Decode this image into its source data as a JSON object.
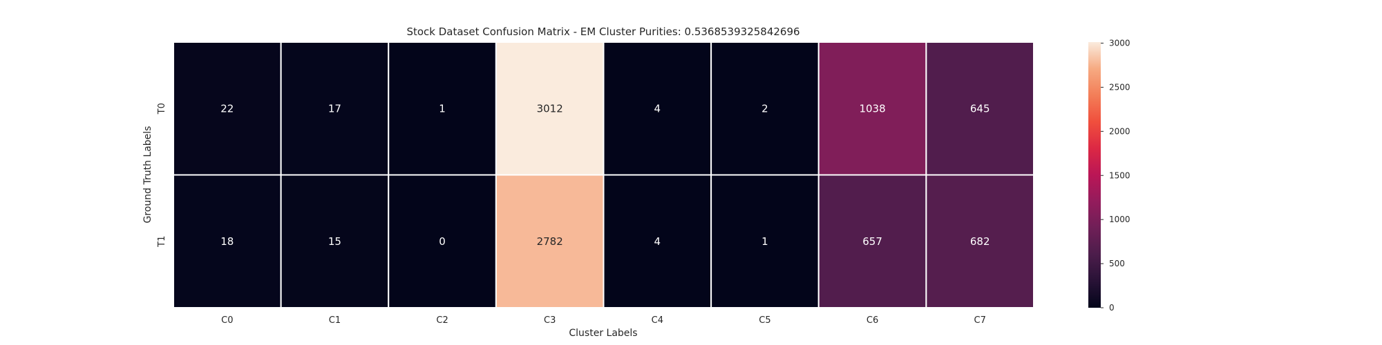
{
  "chart_data": {
    "type": "heatmap",
    "title": "Stock Dataset Confusion Matrix - EM Cluster Purities: 0.5368539325842696",
    "xlabel": "Cluster Labels",
    "ylabel": "Ground Truth Labels",
    "x_categories": [
      "C0",
      "C1",
      "C2",
      "C3",
      "C4",
      "C5",
      "C6",
      "C7"
    ],
    "y_categories": [
      "T0",
      "T1"
    ],
    "values": [
      [
        22,
        17,
        1,
        3012,
        4,
        2,
        1038,
        645
      ],
      [
        18,
        15,
        0,
        2782,
        4,
        1,
        657,
        682
      ]
    ],
    "colorbar": {
      "min": 0,
      "max": 3012,
      "ticks": [
        0,
        500,
        1000,
        1500,
        2000,
        2500,
        3000
      ],
      "colormap": "rocket"
    },
    "grid": false
  }
}
